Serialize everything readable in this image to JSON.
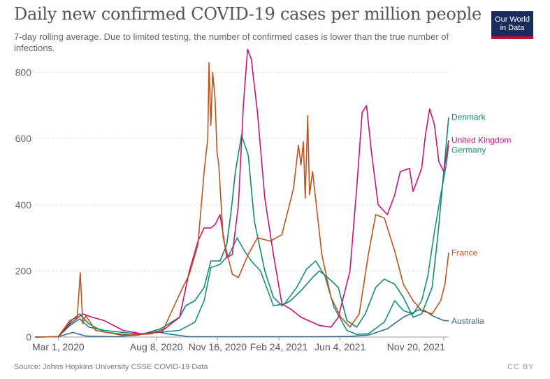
{
  "header": {
    "title": "Daily new confirmed COVID-19 cases per million people",
    "subtitle": "7-day rolling average. Due to limited testing, the number of confirmed cases is lower than the true number of infections.",
    "logo_line1": "Our World",
    "logo_line2": "in Data"
  },
  "footer": {
    "source": "Source: Johns Hopkins University CSSE COVID-19 Data",
    "license": "CC BY"
  },
  "colors": {
    "Denmark": "#0f8a6e",
    "United Kingdom": "#c4127e",
    "Germany": "#18907a",
    "France": "#c0521b",
    "Australia": "#3b6c93",
    "grid": "#dddddd",
    "axis": "#999999"
  },
  "chart_data": {
    "type": "line",
    "title": "Daily new confirmed COVID-19 cases per million people",
    "subtitle": "7-day rolling average. Due to limited testing, the number of confirmed cases is lower than the true number of infections.",
    "xlabel": "",
    "ylabel": "",
    "ylim": [
      0,
      850
    ],
    "xlim": [
      "2020-01-23",
      "2021-11-28"
    ],
    "y_ticks": [
      0,
      200,
      400,
      600,
      800
    ],
    "x_ticks": [
      "Mar 1, 2020",
      "Aug 8, 2020",
      "Nov 16, 2020",
      "Feb 24, 2021",
      "Jun 4, 2021",
      "Nov 20, 2021"
    ],
    "x_tick_dates": [
      "2020-03-01",
      "2020-08-08",
      "2020-11-16",
      "2021-02-24",
      "2021-06-04",
      "2021-11-20"
    ],
    "grid": "horizontal-dashed",
    "legend": "inline-right",
    "series": [
      {
        "name": "Australia",
        "x": [
          "2020-01-23",
          "2020-03-01",
          "2020-03-25",
          "2020-04-15",
          "2020-06-01",
          "2020-07-10",
          "2020-08-05",
          "2020-08-25",
          "2020-10-01",
          "2021-01-01",
          "2021-05-01",
          "2021-06-20",
          "2021-07-20",
          "2021-08-20",
          "2021-09-15",
          "2021-10-10",
          "2021-10-20",
          "2021-11-01",
          "2021-11-20",
          "2021-11-28"
        ],
        "y": [
          0,
          1,
          14,
          3,
          1,
          6,
          18,
          10,
          1,
          1,
          1,
          2,
          6,
          25,
          60,
          82,
          80,
          65,
          50,
          49
        ]
      },
      {
        "name": "Germany",
        "x": [
          "2020-01-23",
          "2020-03-01",
          "2020-03-25",
          "2020-04-05",
          "2020-04-20",
          "2020-05-15",
          "2020-07-01",
          "2020-08-15",
          "2020-09-15",
          "2020-10-10",
          "2020-10-25",
          "2020-11-05",
          "2020-11-20",
          "2020-12-05",
          "2020-12-18",
          "2020-12-30",
          "2021-01-10",
          "2021-01-25",
          "2021-02-15",
          "2021-03-05",
          "2021-03-25",
          "2021-04-10",
          "2021-04-25",
          "2021-05-10",
          "2021-05-25",
          "2021-06-15",
          "2021-07-01",
          "2021-07-20",
          "2021-08-15",
          "2021-09-01",
          "2021-09-15",
          "2021-10-01",
          "2021-10-15",
          "2021-10-25",
          "2021-11-05",
          "2021-11-15",
          "2021-11-24",
          "2021-11-28"
        ],
        "y": [
          0,
          1,
          55,
          70,
          40,
          15,
          5,
          15,
          20,
          45,
          110,
          210,
          220,
          250,
          300,
          260,
          230,
          200,
          95,
          100,
          150,
          205,
          230,
          185,
          90,
          20,
          8,
          10,
          45,
          110,
          80,
          70,
          110,
          185,
          320,
          430,
          520,
          580
        ]
      },
      {
        "name": "Denmark",
        "x": [
          "2020-01-23",
          "2020-03-01",
          "2020-03-20",
          "2020-04-05",
          "2020-04-20",
          "2020-05-15",
          "2020-07-15",
          "2020-08-15",
          "2020-09-15",
          "2020-09-25",
          "2020-10-10",
          "2020-10-25",
          "2020-11-05",
          "2020-11-20",
          "2020-12-01",
          "2020-12-08",
          "2020-12-15",
          "2020-12-25",
          "2021-01-05",
          "2021-01-15",
          "2021-02-01",
          "2021-02-15",
          "2021-03-01",
          "2021-03-15",
          "2021-04-01",
          "2021-04-20",
          "2021-05-01",
          "2021-05-15",
          "2021-06-01",
          "2021-06-15",
          "2021-07-01",
          "2021-07-15",
          "2021-08-01",
          "2021-08-15",
          "2021-09-01",
          "2021-09-15",
          "2021-10-01",
          "2021-10-15",
          "2021-11-01",
          "2021-11-10",
          "2021-11-20",
          "2021-11-28"
        ],
        "y": [
          0,
          1,
          35,
          55,
          30,
          20,
          8,
          25,
          60,
          95,
          110,
          150,
          230,
          230,
          280,
          380,
          500,
          610,
          550,
          350,
          200,
          120,
          95,
          110,
          140,
          180,
          200,
          180,
          150,
          50,
          30,
          70,
          150,
          175,
          160,
          120,
          60,
          70,
          150,
          300,
          500,
          665
        ]
      },
      {
        "name": "United Kingdom",
        "x": [
          "2020-01-23",
          "2020-03-01",
          "2020-03-20",
          "2020-04-10",
          "2020-04-25",
          "2020-05-15",
          "2020-06-15",
          "2020-07-15",
          "2020-08-15",
          "2020-09-15",
          "2020-10-01",
          "2020-10-15",
          "2020-10-25",
          "2020-11-05",
          "2020-11-12",
          "2020-11-20",
          "2020-12-01",
          "2020-12-10",
          "2020-12-20",
          "2020-12-28",
          "2021-01-04",
          "2021-01-10",
          "2021-01-20",
          "2021-02-01",
          "2021-02-15",
          "2021-03-01",
          "2021-03-15",
          "2021-04-01",
          "2021-05-01",
          "2021-05-20",
          "2021-06-01",
          "2021-06-20",
          "2021-07-01",
          "2021-07-10",
          "2021-07-17",
          "2021-07-25",
          "2021-08-05",
          "2021-08-20",
          "2021-09-01",
          "2021-09-10",
          "2021-09-25",
          "2021-10-01",
          "2021-10-15",
          "2021-10-21",
          "2021-10-28",
          "2021-11-05",
          "2021-11-12",
          "2021-11-20",
          "2021-11-28"
        ],
        "y": [
          0,
          1,
          40,
          70,
          60,
          50,
          20,
          10,
          15,
          60,
          200,
          290,
          330,
          330,
          340,
          370,
          240,
          250,
          400,
          700,
          870,
          840,
          680,
          420,
          250,
          100,
          85,
          60,
          35,
          30,
          60,
          200,
          450,
          680,
          700,
          560,
          400,
          370,
          430,
          500,
          510,
          440,
          510,
          610,
          690,
          640,
          530,
          500,
          595
        ]
      },
      {
        "name": "France",
        "x": [
          "2020-01-23",
          "2020-03-01",
          "2020-03-20",
          "2020-04-01",
          "2020-04-06",
          "2020-04-10",
          "2020-04-15",
          "2020-05-01",
          "2020-06-15",
          "2020-08-01",
          "2020-08-20",
          "2020-09-15",
          "2020-10-01",
          "2020-10-15",
          "2020-10-25",
          "2020-10-31",
          "2020-11-02",
          "2020-11-05",
          "2020-11-08",
          "2020-11-12",
          "2020-11-15",
          "2020-11-18",
          "2020-11-25",
          "2020-12-10",
          "2020-12-20",
          "2021-01-05",
          "2021-01-20",
          "2021-02-10",
          "2021-03-01",
          "2021-03-20",
          "2021-03-28",
          "2021-04-01",
          "2021-04-05",
          "2021-04-08",
          "2021-04-12",
          "2021-04-15",
          "2021-04-20",
          "2021-05-05",
          "2021-05-20",
          "2021-06-05",
          "2021-06-20",
          "2021-07-05",
          "2021-07-20",
          "2021-08-01",
          "2021-08-15",
          "2021-09-01",
          "2021-09-15",
          "2021-10-01",
          "2021-10-15",
          "2021-11-01",
          "2021-11-15",
          "2021-11-22",
          "2021-11-28"
        ],
        "y": [
          0,
          1,
          50,
          60,
          195,
          40,
          65,
          20,
          5,
          10,
          25,
          130,
          190,
          280,
          500,
          600,
          830,
          640,
          800,
          720,
          560,
          520,
          300,
          190,
          180,
          250,
          300,
          290,
          310,
          450,
          580,
          520,
          590,
          420,
          670,
          430,
          500,
          250,
          120,
          60,
          30,
          70,
          250,
          370,
          360,
          260,
          160,
          110,
          80,
          70,
          110,
          160,
          255
        ]
      }
    ]
  }
}
